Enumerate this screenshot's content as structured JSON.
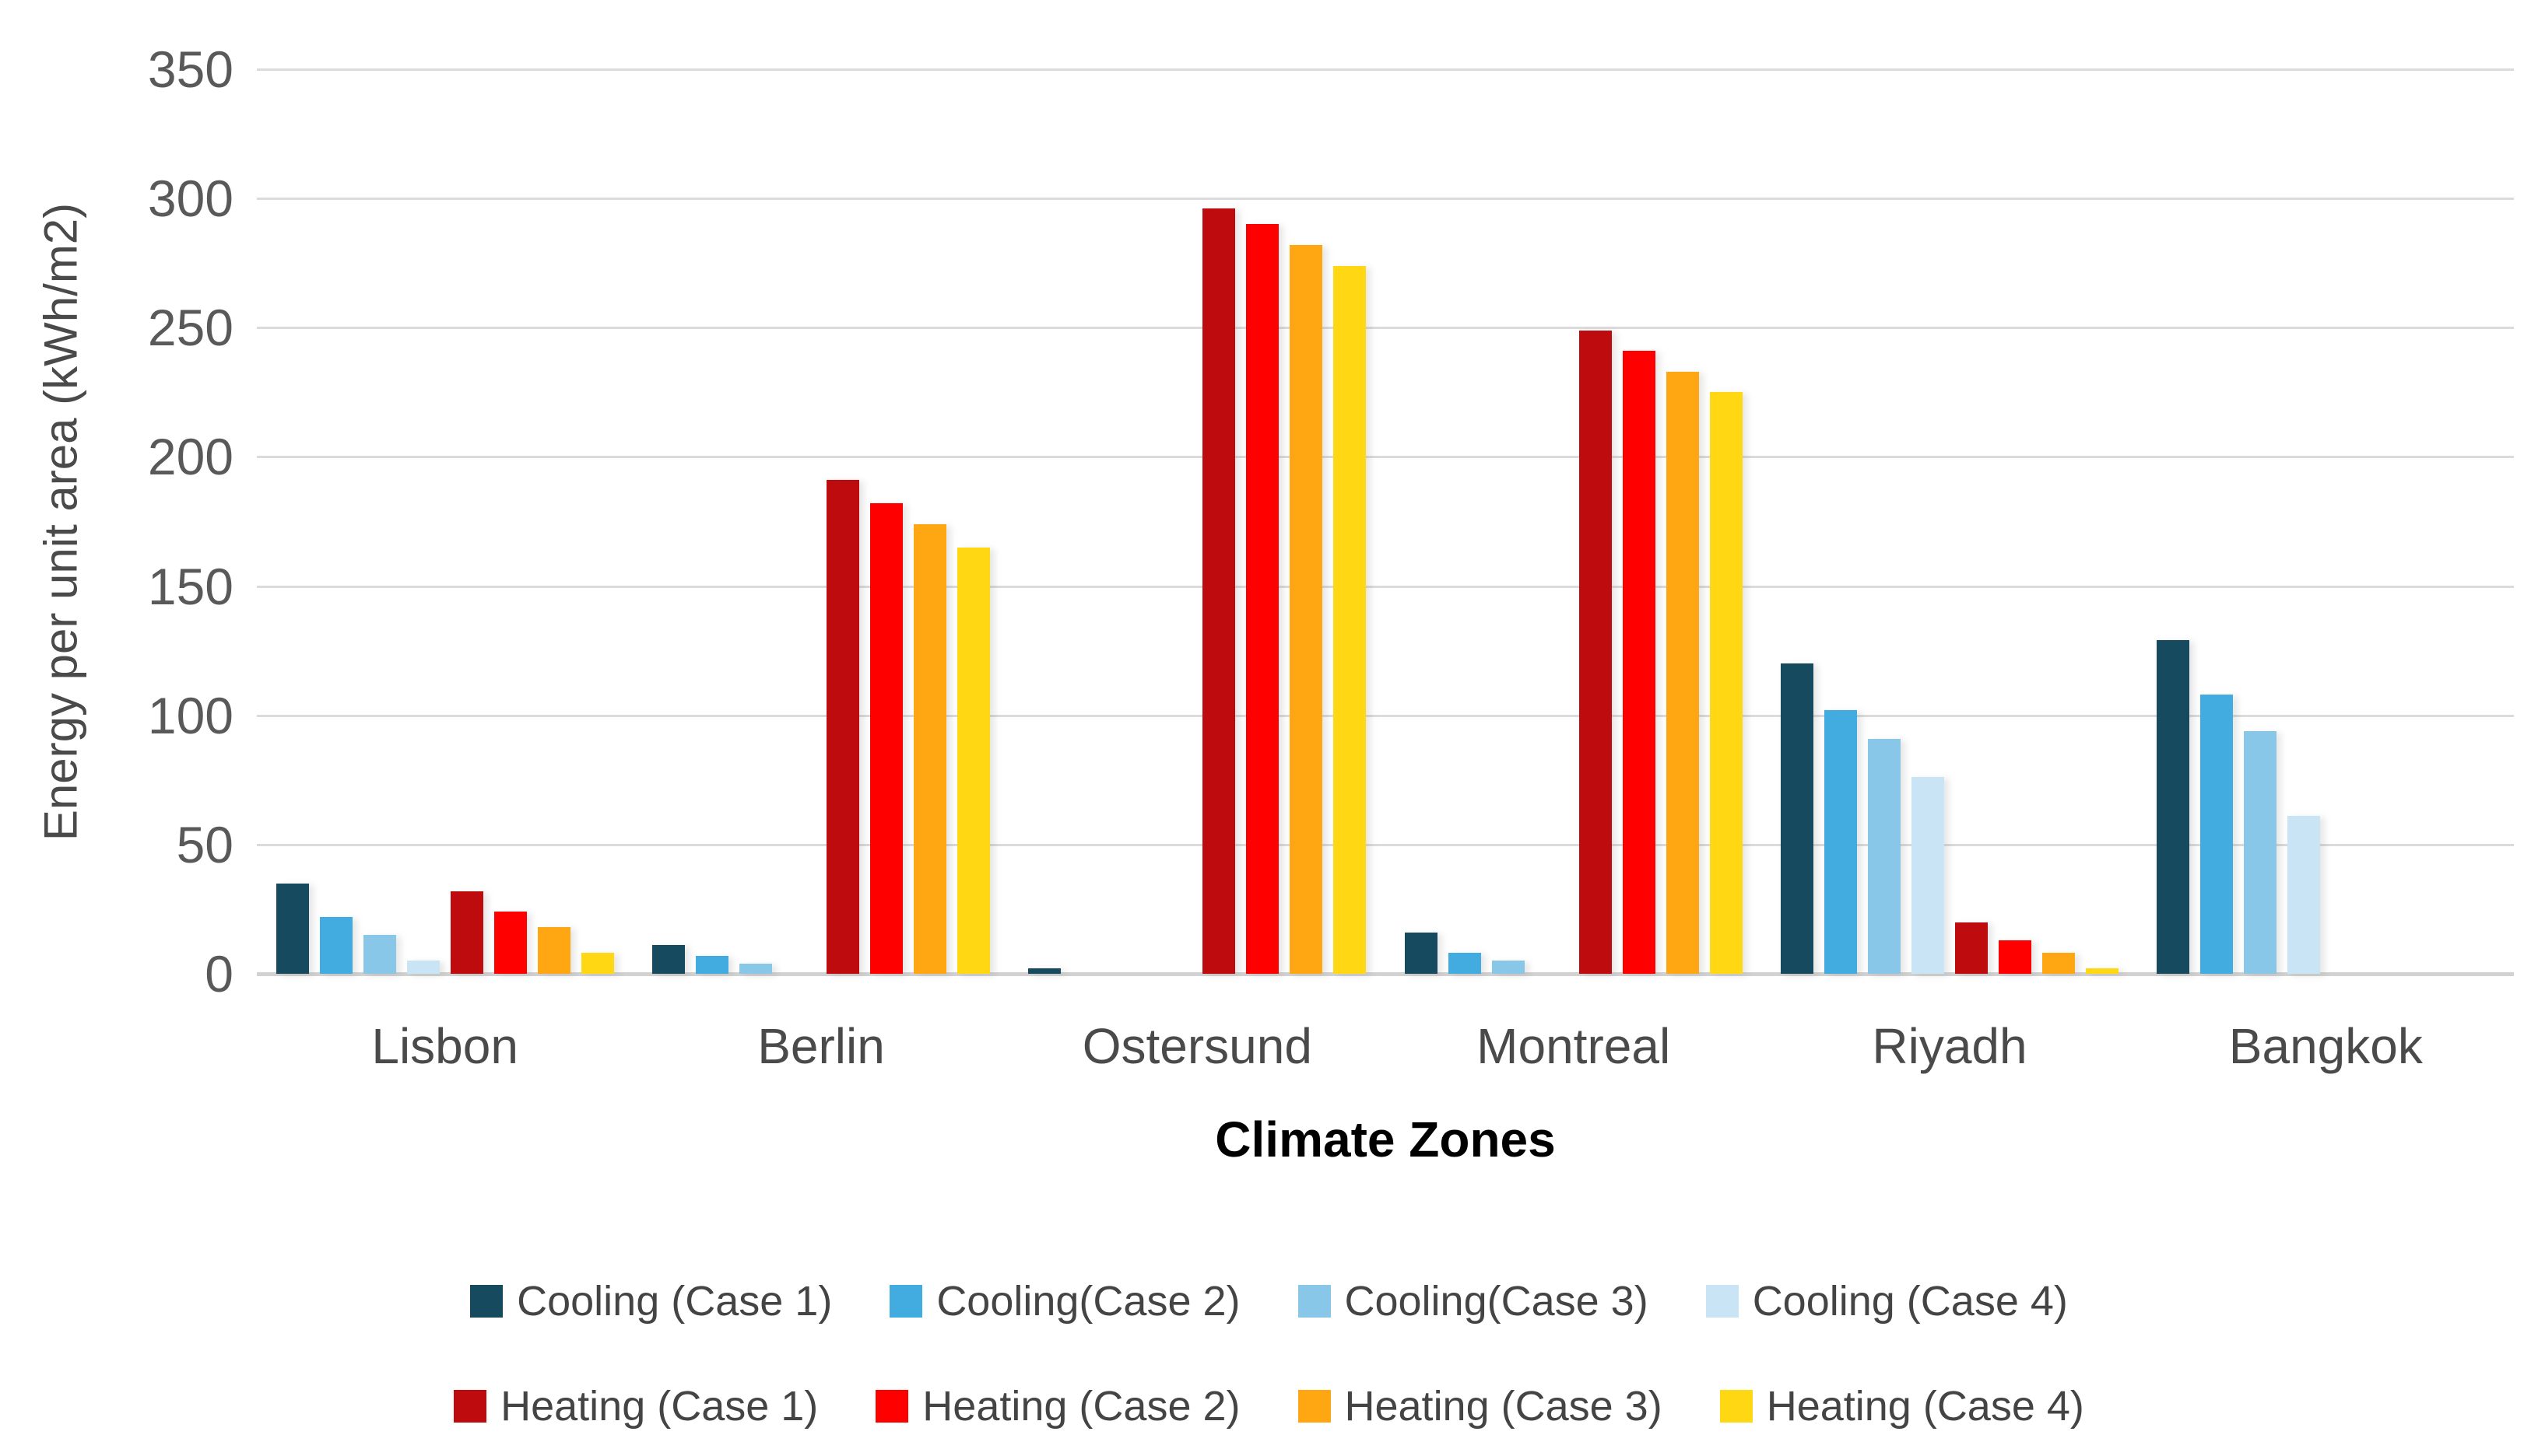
{
  "chart_data": {
    "type": "bar",
    "title": "",
    "xlabel": "Climate Zones",
    "ylabel": "Energy per unit area (kWh/m2)",
    "categories": [
      "Lisbon",
      "Berlin",
      "Ostersund",
      "Montreal",
      "Riyadh",
      "Bangkok"
    ],
    "y_ticks": [
      0,
      50,
      100,
      150,
      200,
      250,
      300,
      350
    ],
    "ylim": [
      0,
      350
    ],
    "grid": true,
    "legend_position": "bottom",
    "legend_rows": [
      [
        0,
        1,
        2,
        3
      ],
      [
        4,
        5,
        6,
        7
      ]
    ],
    "series": [
      {
        "name": "Cooling (Case 1)",
        "color": "#164A5F",
        "values": [
          35,
          11,
          2,
          16,
          120,
          129
        ]
      },
      {
        "name": "Cooling(Case 2)",
        "color": "#42ACE1",
        "values": [
          22,
          7,
          0,
          8,
          102,
          108
        ]
      },
      {
        "name": "Cooling(Case 3)",
        "color": "#89C7E8",
        "values": [
          15,
          4,
          0,
          5,
          91,
          94
        ]
      },
      {
        "name": "Cooling (Case 4)",
        "color": "#C9E4F5",
        "values": [
          5,
          0,
          0,
          0,
          76,
          61
        ]
      },
      {
        "name": "Heating (Case 1)",
        "color": "#BE0B0E",
        "values": [
          32,
          191,
          296,
          249,
          20,
          0
        ]
      },
      {
        "name": "Heating (Case 2)",
        "color": "#FE0000",
        "values": [
          24,
          182,
          290,
          241,
          13,
          0
        ]
      },
      {
        "name": "Heating (Case 3)",
        "color": "#FFA713",
        "values": [
          18,
          174,
          282,
          233,
          8,
          0
        ]
      },
      {
        "name": "Heating (Case 4)",
        "color": "#FFD813",
        "values": [
          8,
          165,
          274,
          225,
          2,
          0
        ]
      }
    ]
  }
}
